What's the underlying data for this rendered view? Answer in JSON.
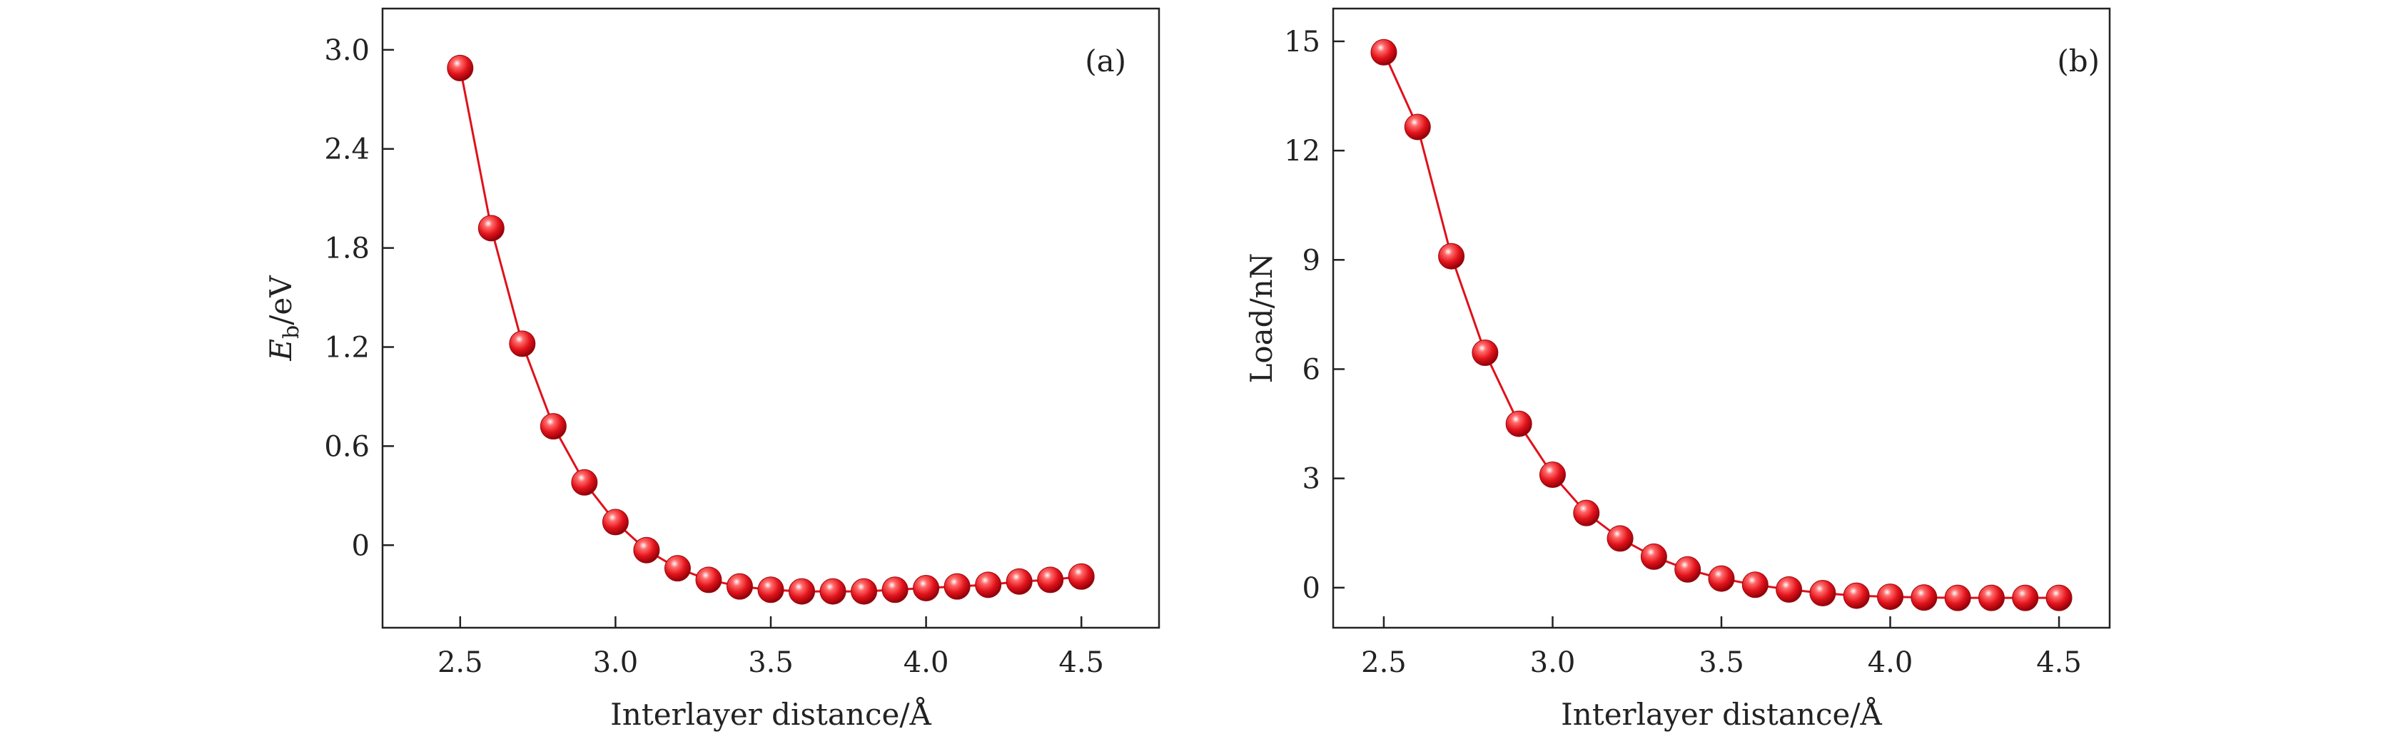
{
  "chart_data": [
    {
      "type": "line",
      "panel_label": "(a)",
      "title": "",
      "xlabel": "Interlayer distance/Å",
      "ylabel_main": "E",
      "ylabel_sub": "b",
      "ylabel_tail": "/eV",
      "xlim": [
        2.25,
        4.75
      ],
      "ylim": [
        -0.5,
        3.25
      ],
      "xticks": [
        2.5,
        3.0,
        3.5,
        4.0,
        4.5
      ],
      "xtick_labels": [
        "2.5",
        "3.0",
        "3.5",
        "4.0",
        "4.5"
      ],
      "yticks": [
        0,
        0.6,
        1.2,
        1.8,
        2.4,
        3.0
      ],
      "ytick_labels": [
        "0",
        "0.6",
        "1.2",
        "1.8",
        "2.4",
        "3.0"
      ],
      "color": "#e0101a",
      "grid": false,
      "x": [
        2.5,
        2.6,
        2.7,
        2.8,
        2.9,
        3.0,
        3.1,
        3.2,
        3.3,
        3.4,
        3.5,
        3.6,
        3.7,
        3.8,
        3.9,
        4.0,
        4.1,
        4.2,
        4.3,
        4.4,
        4.5
      ],
      "y": [
        2.89,
        1.92,
        1.22,
        0.72,
        0.38,
        0.14,
        -0.03,
        -0.14,
        -0.21,
        -0.25,
        -0.27,
        -0.28,
        -0.28,
        -0.28,
        -0.27,
        -0.26,
        -0.25,
        -0.24,
        -0.22,
        -0.21,
        -0.19
      ]
    },
    {
      "type": "line",
      "panel_label": "(b)",
      "title": "",
      "xlabel": "Interlayer distance/Å",
      "ylabel": "Load/nN",
      "xlim": [
        2.35,
        4.65
      ],
      "ylim": [
        -1.1,
        15.9
      ],
      "xticks": [
        2.5,
        3.0,
        3.5,
        4.0,
        4.5
      ],
      "xtick_labels": [
        "2.5",
        "3.0",
        "3.5",
        "4.0",
        "4.5"
      ],
      "yticks": [
        0,
        3,
        6,
        9,
        12,
        15
      ],
      "ytick_labels": [
        "0",
        "3",
        "6",
        "9",
        "12",
        "15"
      ],
      "color": "#e0101a",
      "grid": false,
      "x": [
        2.5,
        2.6,
        2.7,
        2.8,
        2.9,
        3.0,
        3.1,
        3.2,
        3.3,
        3.4,
        3.5,
        3.6,
        3.7,
        3.8,
        3.9,
        4.0,
        4.1,
        4.2,
        4.3,
        4.4,
        4.5
      ],
      "y": [
        14.7,
        12.65,
        9.1,
        6.45,
        4.5,
        3.1,
        2.05,
        1.35,
        0.85,
        0.5,
        0.25,
        0.08,
        -0.05,
        -0.15,
        -0.22,
        -0.25,
        -0.27,
        -0.28,
        -0.28,
        -0.28,
        -0.28
      ]
    }
  ]
}
